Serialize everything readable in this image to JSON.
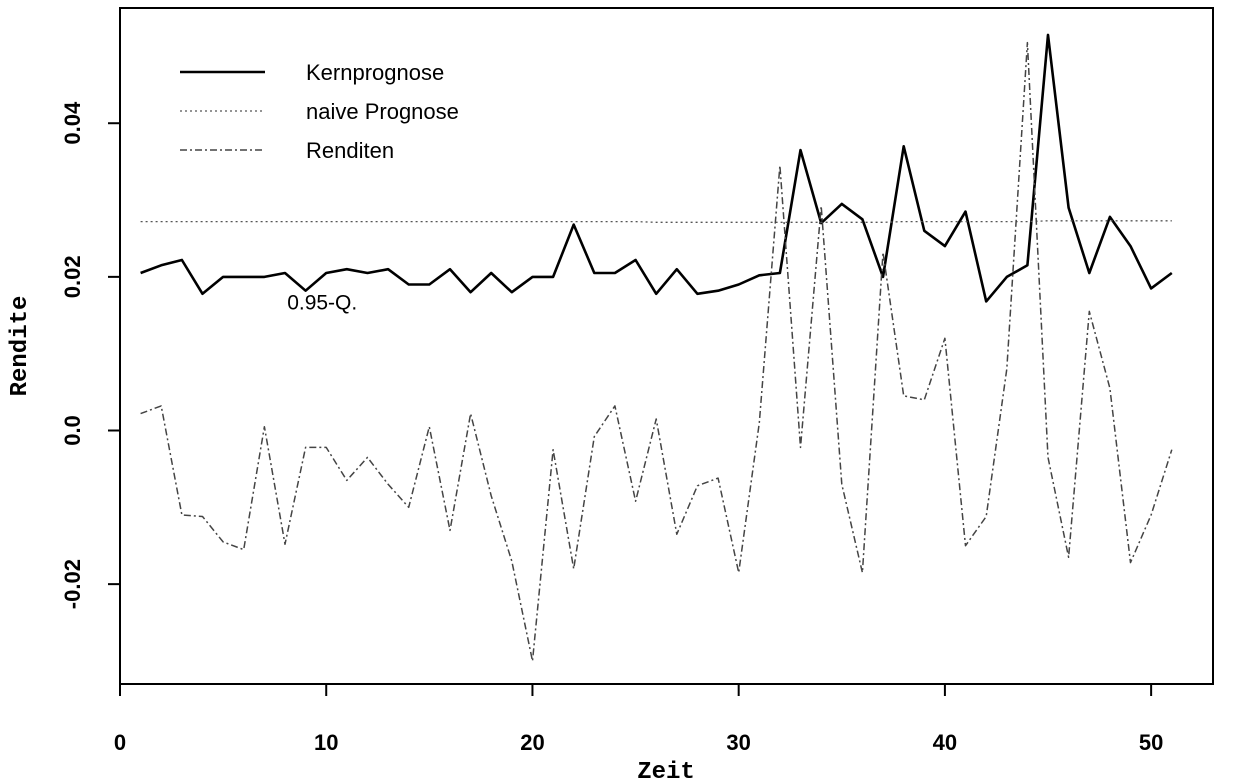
{
  "chart_data": {
    "type": "line",
    "xlabel": "Zeit",
    "ylabel": "Rendite",
    "xlim": [
      0,
      53
    ],
    "ylim": [
      -0.033,
      0.055
    ],
    "xticks": [
      0,
      10,
      20,
      30,
      40,
      50
    ],
    "xtick_labels": [
      "0",
      "10",
      "20",
      "30",
      "40",
      "50"
    ],
    "yticks": [
      -0.02,
      0.0,
      0.02,
      0.04
    ],
    "ytick_labels": [
      "-0.02",
      "0.0",
      "0.02",
      "0.04"
    ],
    "grid": false,
    "legend_position": "top-left",
    "annotations": [
      {
        "text": "0.95-Q.",
        "x": 10,
        "y": 0.0168
      }
    ],
    "x": [
      1,
      2,
      3,
      4,
      5,
      6,
      7,
      8,
      9,
      10,
      11,
      12,
      13,
      14,
      15,
      16,
      17,
      18,
      19,
      20,
      21,
      22,
      23,
      24,
      25,
      26,
      27,
      28,
      29,
      30,
      31,
      32,
      33,
      34,
      35,
      36,
      37,
      38,
      39,
      40,
      41,
      42,
      43,
      44,
      45,
      46,
      47,
      48,
      49,
      50,
      51
    ],
    "series": [
      {
        "name": "Kernprognose",
        "style": "solid",
        "color": "#000000",
        "values": [
          0.0205,
          0.0215,
          0.0222,
          0.0178,
          0.02,
          0.02,
          0.02,
          0.0205,
          0.0182,
          0.0205,
          0.021,
          0.0205,
          0.021,
          0.019,
          0.019,
          0.021,
          0.018,
          0.0205,
          0.018,
          0.02,
          0.02,
          0.0268,
          0.0205,
          0.0205,
          0.0222,
          0.0178,
          0.021,
          0.0178,
          0.0182,
          0.019,
          0.0202,
          0.0205,
          0.0365,
          0.027,
          0.0295,
          0.0275,
          0.02,
          0.037,
          0.026,
          0.024,
          0.0285,
          0.0168,
          0.02,
          0.0215,
          0.0515,
          0.029,
          0.0205,
          0.0278,
          0.024,
          0.0185,
          0.0205
        ]
      },
      {
        "name": "naive Prognose",
        "style": "dotted",
        "color": "#555555",
        "values": [
          0.0272,
          0.0272,
          0.0272,
          0.0272,
          0.0272,
          0.0272,
          0.0272,
          0.0272,
          0.0272,
          0.0272,
          0.0272,
          0.0272,
          0.0272,
          0.0272,
          0.0272,
          0.0272,
          0.0272,
          0.0272,
          0.0272,
          0.0272,
          0.0272,
          0.0272,
          0.0272,
          0.0272,
          0.0272,
          0.0271,
          0.0271,
          0.0271,
          0.0271,
          0.0271,
          0.0271,
          0.0271,
          0.0271,
          0.0271,
          0.0271,
          0.0271,
          0.0271,
          0.0272,
          0.0272,
          0.0272,
          0.0272,
          0.0272,
          0.0272,
          0.0272,
          0.0273,
          0.0273,
          0.0273,
          0.0273,
          0.0273,
          0.0273,
          0.0273
        ]
      },
      {
        "name": "Renditen",
        "style": "dashdot",
        "color": "#444444",
        "values": [
          0.0022,
          0.0032,
          -0.011,
          -0.0112,
          -0.0145,
          -0.0155,
          0.0005,
          -0.0148,
          -0.0022,
          -0.0022,
          -0.0065,
          -0.0035,
          -0.007,
          -0.01,
          0.0005,
          -0.013,
          0.0022,
          -0.0085,
          -0.017,
          -0.03,
          -0.0025,
          -0.018,
          -0.0008,
          0.0032,
          -0.0092,
          0.0015,
          -0.0135,
          -0.0072,
          -0.0062,
          -0.0185,
          0.001,
          0.0345,
          -0.0022,
          0.0292,
          -0.007,
          -0.0185,
          0.0232,
          0.0045,
          0.004,
          0.012,
          -0.015,
          -0.0112,
          0.008,
          0.0505,
          -0.0035,
          -0.0165,
          0.0155,
          0.0055,
          -0.0172,
          -0.011,
          -0.0025
        ]
      }
    ]
  }
}
